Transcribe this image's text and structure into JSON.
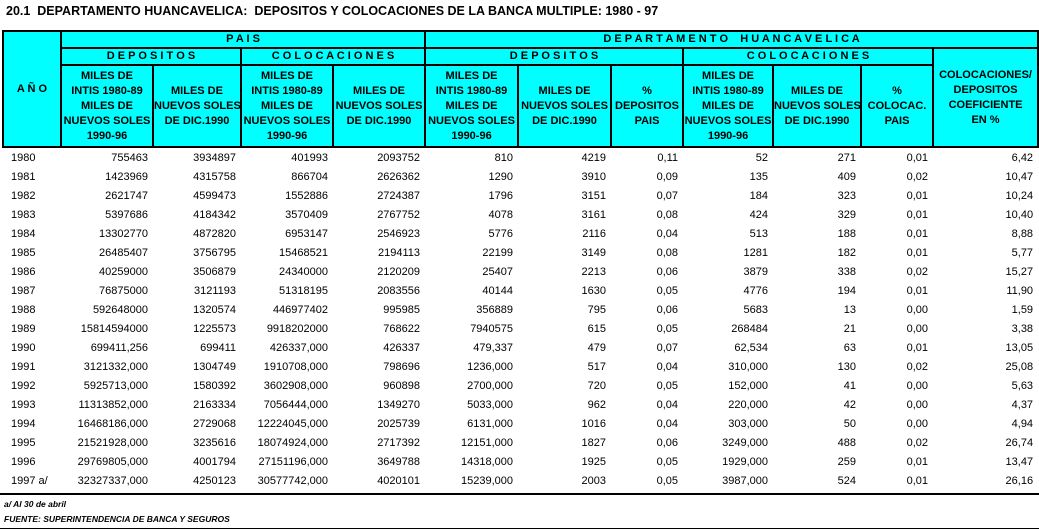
{
  "title": "20.1  DEPARTAMENTO HUANCAVELICA:  DEPOSITOS Y COLOCACIONES DE LA BANCA MULTIPLE: 1980 - 97",
  "colors": {
    "header_bg": "#00FFFF",
    "border": "#000000",
    "body_bg": "#FFFFFF"
  },
  "table": {
    "corner_label": "A Ñ O",
    "groups": {
      "pais": "P A I S",
      "departamento": "D E P A R T A M E N T O    H U A N C A V E L I C A"
    },
    "subgroups": {
      "pais_depositos": "D E P O S I T O S",
      "pais_colocaciones": "C O L O C A C I O N E S",
      "dep_depositos": "D E P O S I T O S",
      "dep_colocaciones": "C O L O C A C I O N E S"
    },
    "leaf_headers": {
      "miles_intis": "MILES DE\nINTIS 1980-89\nMILES DE\nNUEVOS SOLES\n1990-96",
      "miles_soles": "MILES DE\nNUEVOS SOLES\nDE DIC.1990",
      "pct_depositos": "%\nDEPOSITOS\nPAIS",
      "pct_colocac": "%\nCOLOCAC.\nPAIS",
      "coeficiente": "COLOCACIONES/\nDEPOSITOS\nCOEFICIENTE\nEN %"
    },
    "rows": [
      [
        "1980",
        "755463",
        "3934897",
        "401993",
        "2093752",
        "810",
        "4219",
        "0,11",
        "52",
        "271",
        "0,01",
        "6,42"
      ],
      [
        "1981",
        "1423969",
        "4315758",
        "866704",
        "2626362",
        "1290",
        "3910",
        "0,09",
        "135",
        "409",
        "0,02",
        "10,47"
      ],
      [
        "1982",
        "2621747",
        "4599473",
        "1552886",
        "2724387",
        "1796",
        "3151",
        "0,07",
        "184",
        "323",
        "0,01",
        "10,24"
      ],
      [
        "1983",
        "5397686",
        "4184342",
        "3570409",
        "2767752",
        "4078",
        "3161",
        "0,08",
        "424",
        "329",
        "0,01",
        "10,40"
      ],
      [
        "1984",
        "13302770",
        "4872820",
        "6953147",
        "2546923",
        "5776",
        "2116",
        "0,04",
        "513",
        "188",
        "0,01",
        "8,88"
      ],
      [
        "1985",
        "26485407",
        "3756795",
        "15468521",
        "2194113",
        "22199",
        "3149",
        "0,08",
        "1281",
        "182",
        "0,01",
        "5,77"
      ],
      [
        "1986",
        "40259000",
        "3506879",
        "24340000",
        "2120209",
        "25407",
        "2213",
        "0,06",
        "3879",
        "338",
        "0,02",
        "15,27"
      ],
      [
        "1987",
        "76875000",
        "3121193",
        "51318195",
        "2083556",
        "40144",
        "1630",
        "0,05",
        "4776",
        "194",
        "0,01",
        "11,90"
      ],
      [
        "1988",
        "592648000",
        "1320574",
        "446977402",
        "995985",
        "356889",
        "795",
        "0,06",
        "5683",
        "13",
        "0,00",
        "1,59"
      ],
      [
        "1989",
        "15814594000",
        "1225573",
        "9918202000",
        "768622",
        "7940575",
        "615",
        "0,05",
        "268484",
        "21",
        "0,00",
        "3,38"
      ],
      [
        "1990",
        "699411,256",
        "699411",
        "426337,000",
        "426337",
        "479,337",
        "479",
        "0,07",
        "62,534",
        "63",
        "0,01",
        "13,05"
      ],
      [
        "1991",
        "3121332,000",
        "1304749",
        "1910708,000",
        "798696",
        "1236,000",
        "517",
        "0,04",
        "310,000",
        "130",
        "0,02",
        "25,08"
      ],
      [
        "1992",
        "5925713,000",
        "1580392",
        "3602908,000",
        "960898",
        "2700,000",
        "720",
        "0,05",
        "152,000",
        "41",
        "0,00",
        "5,63"
      ],
      [
        "1993",
        "11313852,000",
        "2163334",
        "7056444,000",
        "1349270",
        "5033,000",
        "962",
        "0,04",
        "220,000",
        "42",
        "0,00",
        "4,37"
      ],
      [
        "1994",
        "16468186,000",
        "2729068",
        "12224045,000",
        "2025739",
        "6131,000",
        "1016",
        "0,04",
        "303,000",
        "50",
        "0,00",
        "4,94"
      ],
      [
        "1995",
        "21521928,000",
        "3235616",
        "18074924,000",
        "2717392",
        "12151,000",
        "1827",
        "0,06",
        "3249,000",
        "488",
        "0,02",
        "26,74"
      ],
      [
        "1996",
        "29769805,000",
        "4001794",
        "27151196,000",
        "3649788",
        "14318,000",
        "1925",
        "0,05",
        "1929,000",
        "259",
        "0,01",
        "13,47"
      ],
      [
        "1997 a/",
        "32327337,000",
        "4250123",
        "30577742,000",
        "4020101",
        "15239,000",
        "2003",
        "0,05",
        "3987,000",
        "524",
        "0,01",
        "26,16"
      ]
    ]
  },
  "footnotes": {
    "note": "a/ Al 30 de abril",
    "source": "FUENTE: SUPERINTENDENCIA DE BANCA Y SEGUROS"
  }
}
